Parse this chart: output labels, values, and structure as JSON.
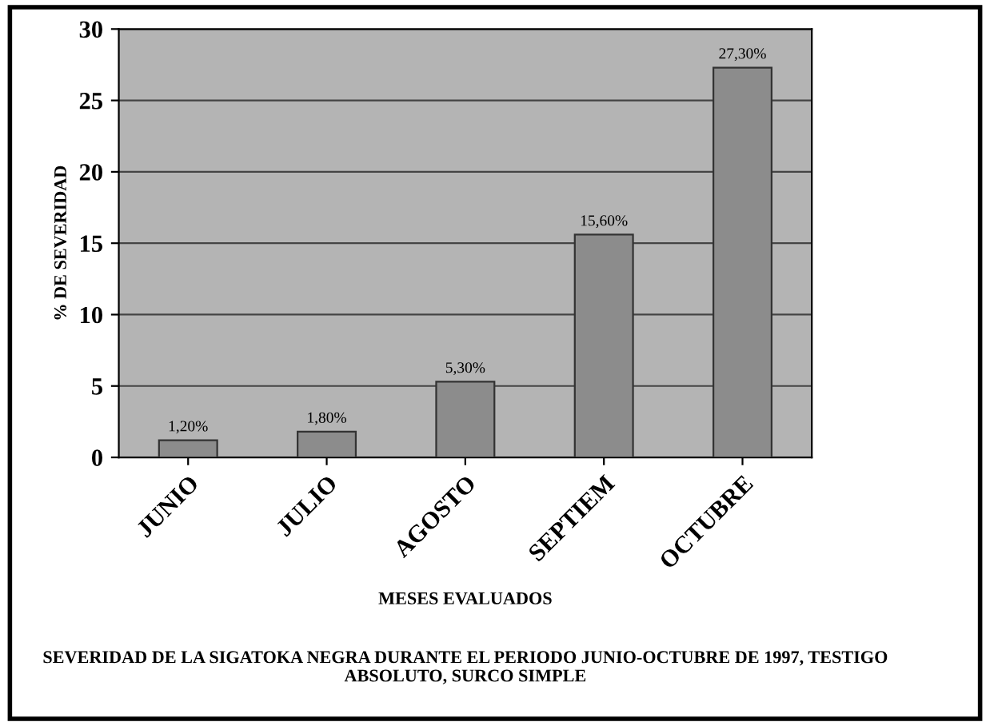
{
  "chart_data": {
    "type": "bar",
    "title": "SEVERIDAD DE LA SIGATOKA NEGRA DURANTE EL PERIODO JUNIO-OCTUBRE DE 1997, TESTIGO ABSOLUTO, SURCO SIMPLE",
    "xlabel": "MESES EVALUADOS",
    "ylabel": "% DE SEVERIDAD",
    "categories": [
      "JUNIO",
      "JULIO",
      "AGOSTO",
      "SEPTIEM",
      "OCTUBRE"
    ],
    "values": [
      1.2,
      1.8,
      5.3,
      15.6,
      27.3
    ],
    "value_labels": [
      "1,20%",
      "1,80%",
      "5,30%",
      "15,60%",
      "27,30%"
    ],
    "color": "#8c8c8c",
    "ylim": [
      0,
      30
    ],
    "yticks": [
      0,
      5,
      10,
      15,
      20,
      25,
      30
    ],
    "grid": "y"
  }
}
